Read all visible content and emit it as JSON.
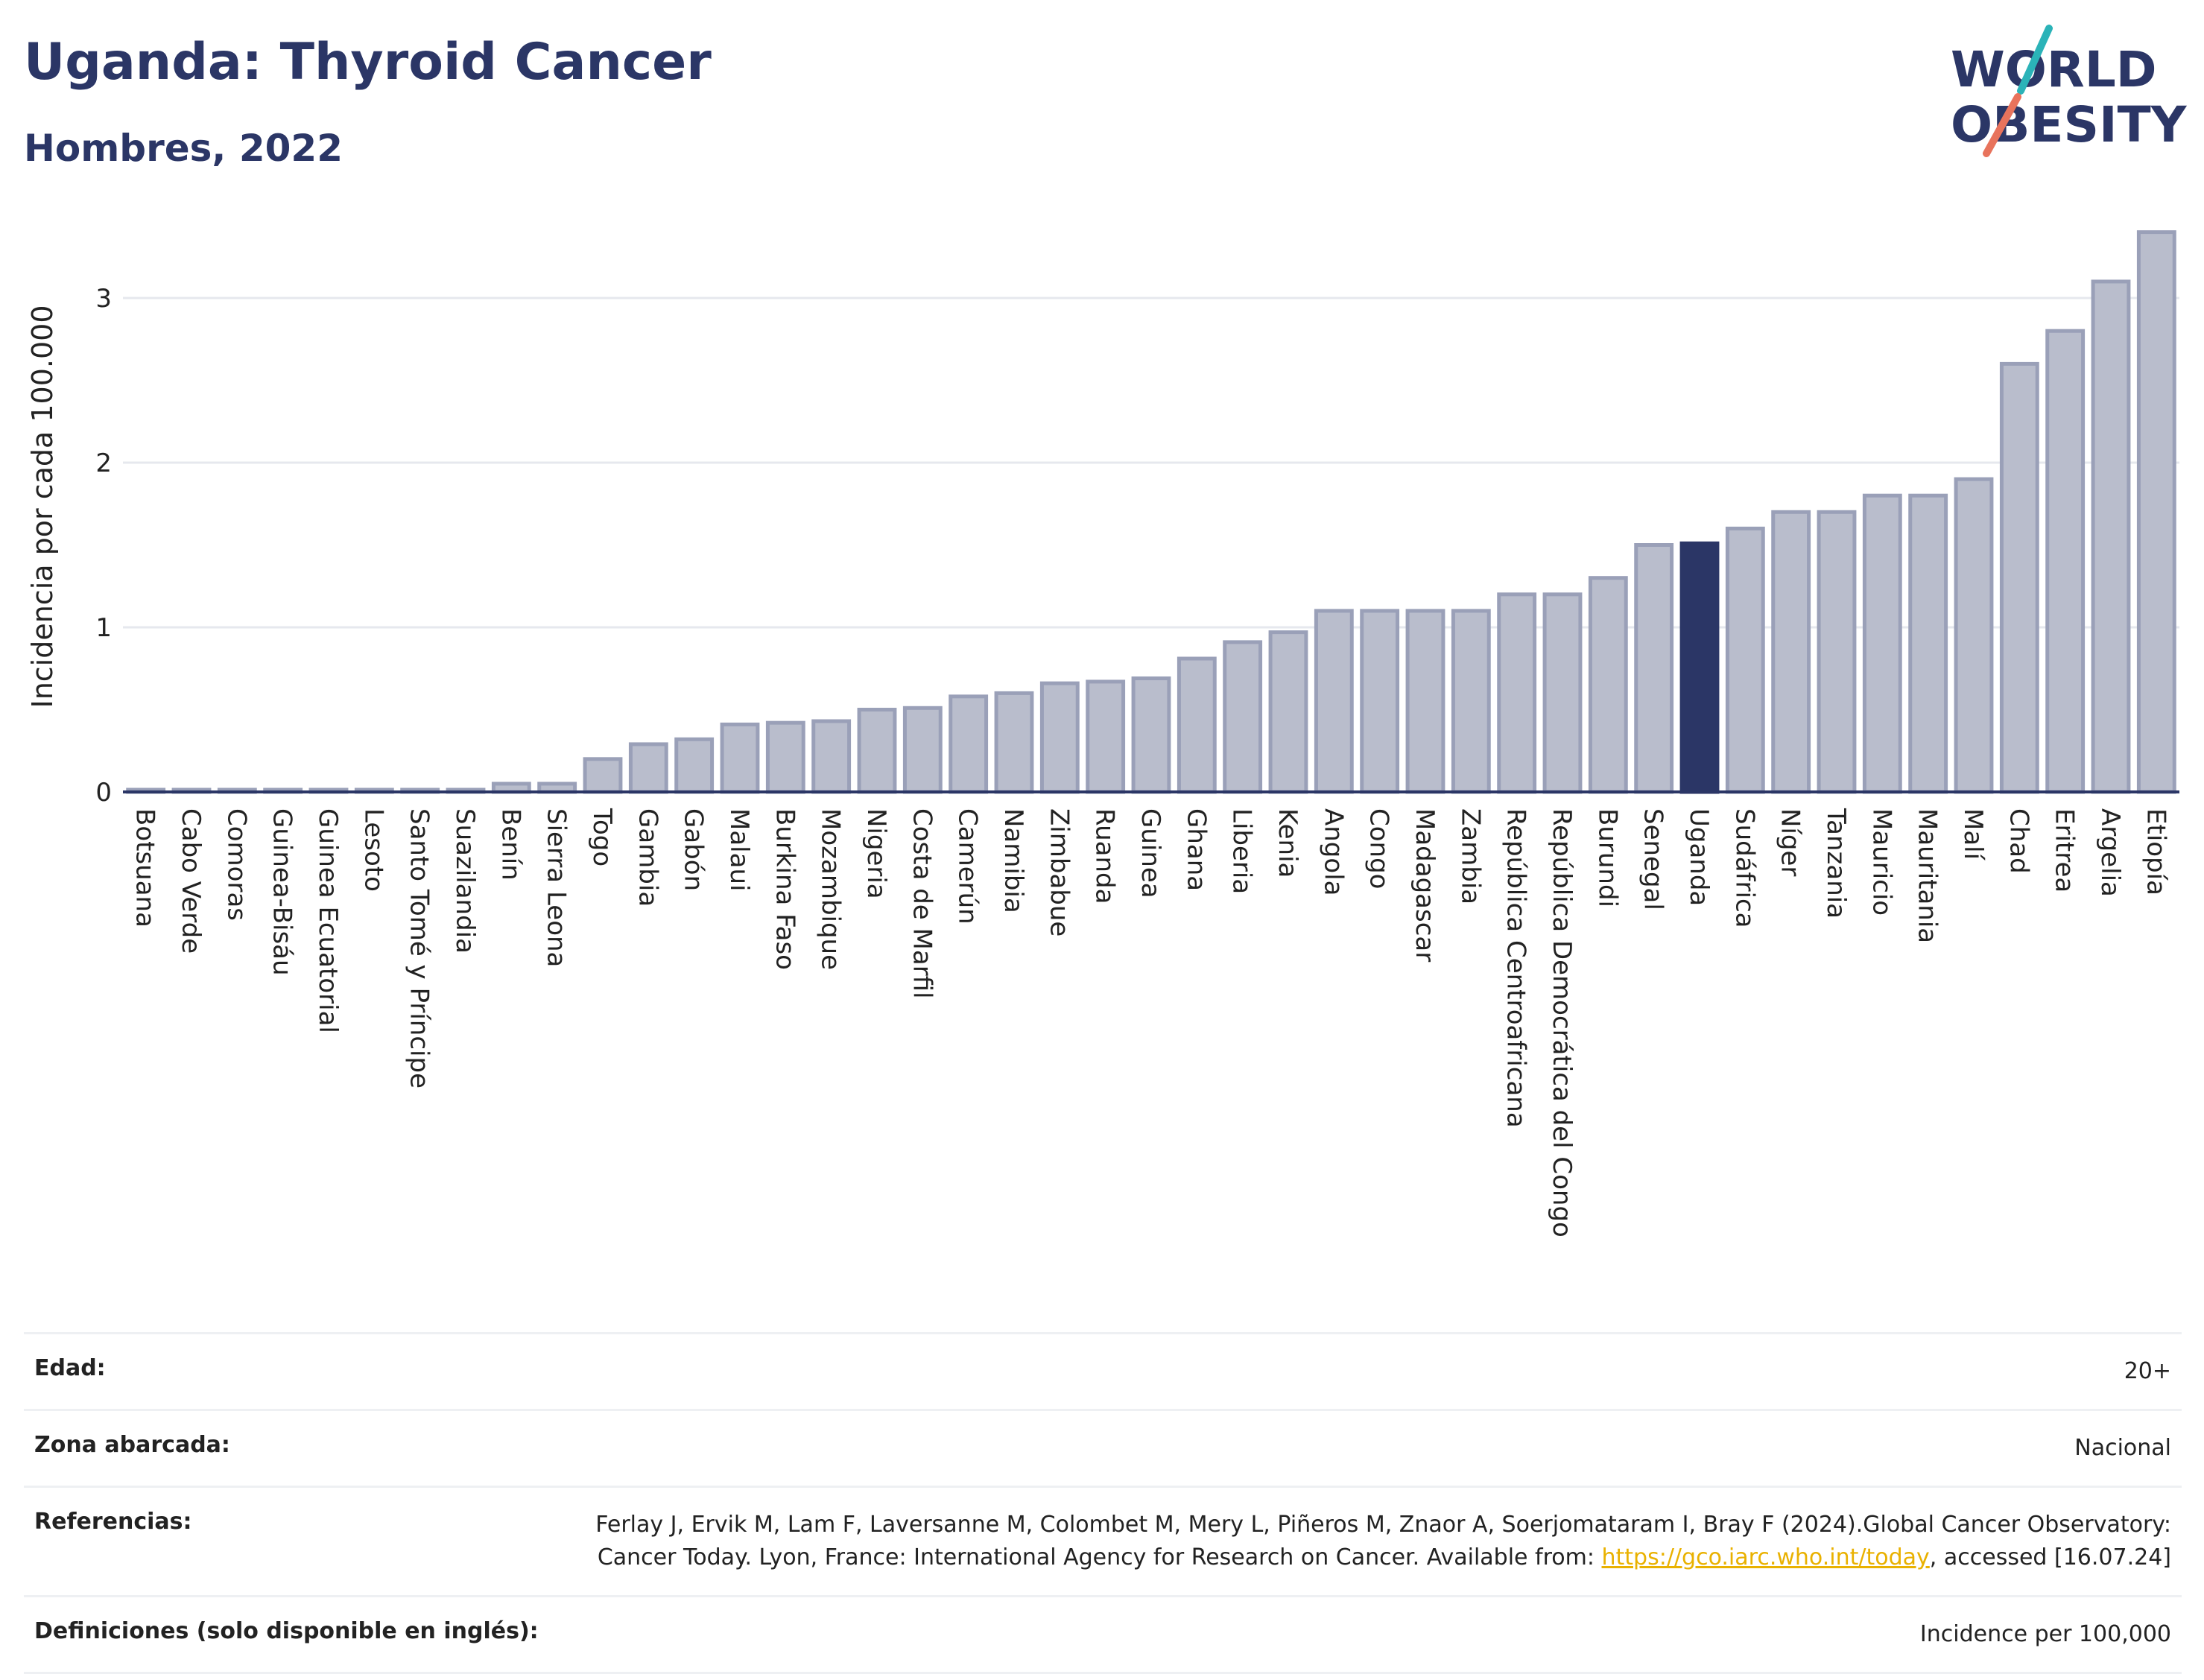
{
  "header": {
    "title": "Uganda: Thyroid Cancer",
    "subtitle": "Hombres, 2022"
  },
  "logo": {
    "line1": "WORLD",
    "line2": "OBESITY",
    "colors": {
      "text": "#2b3666",
      "slash_teal": "#2bb3b8",
      "slash_coral": "#e8735c"
    }
  },
  "colors": {
    "bar_fill": "#b9bdcc",
    "bar_stroke": "#9aa0b8",
    "highlight_fill": "#2b3666",
    "grid": "#e6e8ee",
    "link": "#e9b100"
  },
  "chart_data": {
    "type": "bar",
    "ylabel": "Incidencia por cada 100.000",
    "ylim": [
      0,
      3.5
    ],
    "yticks": [
      0,
      1,
      2,
      3
    ],
    "grid": true,
    "highlight": "Uganda",
    "categories": [
      "Botsuana",
      "Cabo Verde",
      "Comoras",
      "Guinea-Bisáu",
      "Guinea Ecuatorial",
      "Lesoto",
      "Santo Tomé y Príncipe",
      "Suazilandia",
      "Benín",
      "Sierra Leona",
      "Togo",
      "Gambia",
      "Gabón",
      "Malaui",
      "Burkina Faso",
      "Mozambique",
      "Nigeria",
      "Costa de Marfil",
      "Camerún",
      "Namibia",
      "Zimbabue",
      "Ruanda",
      "Guinea",
      "Ghana",
      "Liberia",
      "Kenia",
      "Angola",
      "Congo",
      "Madagascar",
      "Zambia",
      "República Centroafricana",
      "República Democrática del Congo",
      "Burundi",
      "Senegal",
      "Uganda",
      "Sudáfrica",
      "Níger",
      "Tanzania",
      "Mauricio",
      "Mauritania",
      "Malí",
      "Chad",
      "Eritrea",
      "Argelia",
      "Etiopía"
    ],
    "values": [
      0.01,
      0.01,
      0.01,
      0.01,
      0.01,
      0.01,
      0.01,
      0.01,
      0.05,
      0.05,
      0.2,
      0.29,
      0.32,
      0.41,
      0.42,
      0.43,
      0.5,
      0.51,
      0.58,
      0.6,
      0.66,
      0.67,
      0.69,
      0.81,
      0.91,
      0.97,
      1.1,
      1.1,
      1.1,
      1.1,
      1.2,
      1.2,
      1.3,
      1.5,
      1.51,
      1.6,
      1.7,
      1.7,
      1.8,
      1.8,
      1.9,
      2.6,
      2.8,
      3.1,
      3.4
    ]
  },
  "meta": {
    "edad_label": "Edad:",
    "edad_value": "20+",
    "zona_label": "Zona abarcada:",
    "zona_value": "Nacional",
    "ref_label": "Referencias:",
    "ref_text": "Ferlay J, Ervik M, Lam F, Laversanne M, Colombet M, Mery L, Piñeros M, Znaor A, Soerjomataram I, Bray F (2024).Global Cancer Observatory: Cancer Today. Lyon, France: International Agency for Research on Cancer. Available from: ",
    "ref_link": "https://gco.iarc.who.int/today",
    "ref_tail": ", accessed [16.07.24]",
    "def_label": "Definiciones (solo disponible en inglés):",
    "def_value": "Incidence per 100,000"
  }
}
